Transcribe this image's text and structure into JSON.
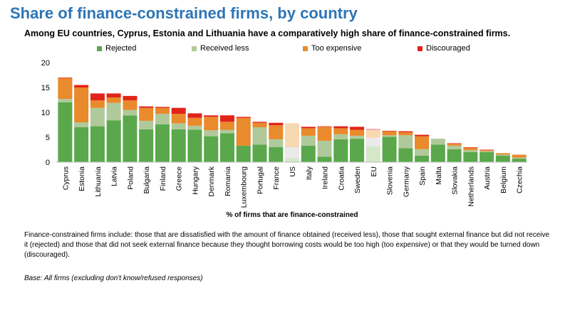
{
  "header": {
    "title": "Share of finance-constrained firms, by country",
    "subtitle": "Among EU countries, Cyprus, Estonia and Lithuania have a comparatively high share of finance-constrained firms."
  },
  "chart_data": {
    "type": "bar",
    "stacked": true,
    "categories": [
      "Cyprus",
      "Estonia",
      "Lithuania",
      "Latvia",
      "Poland",
      "Bulgaria",
      "Finland",
      "Greece",
      "Hungary",
      "Denmark",
      "Romania",
      "Luxembourg",
      "Portugal",
      "France",
      "US",
      "Italy",
      "Ireland",
      "Croatia",
      "Sweden",
      "EU",
      "Slovenia",
      "Germany",
      "Spain",
      "Malta",
      "Slovakia",
      "Netherlands",
      "Austria",
      "Belgium",
      "Czechia"
    ],
    "highlight_categories": [
      "US",
      "EU"
    ],
    "series": [
      {
        "name": "Rejected",
        "color": "#5aa84b",
        "highlight_color": "#d4e8c9",
        "values": [
          12.0,
          7.0,
          7.2,
          8.4,
          9.4,
          6.6,
          7.6,
          6.6,
          6.5,
          5.2,
          5.8,
          3.3,
          3.5,
          3.0,
          0.8,
          3.3,
          1.1,
          4.6,
          4.7,
          3.2,
          5.1,
          2.8,
          1.3,
          3.5,
          2.6,
          2.0,
          2.0,
          1.3,
          0.7
        ]
      },
      {
        "name": "Received less",
        "color": "#b0c99a",
        "highlight_color": "#eaeaea",
        "values": [
          0.7,
          1.0,
          3.7,
          3.5,
          1.1,
          1.7,
          2.1,
          1.2,
          0.8,
          1.2,
          0.7,
          0.0,
          3.5,
          1.6,
          2.2,
          2.0,
          3.2,
          1.0,
          0.6,
          1.7,
          0.3,
          2.6,
          1.3,
          1.2,
          0.7,
          0.4,
          0.2,
          0.2,
          0.2
        ]
      },
      {
        "name": "Too expensive",
        "color": "#e98a2c",
        "highlight_color": "#f8d8b0",
        "values": [
          4.2,
          7.0,
          1.5,
          1.1,
          1.9,
          2.6,
          1.2,
          1.9,
          1.6,
          2.7,
          1.6,
          5.6,
          0.9,
          2.8,
          4.8,
          1.5,
          2.8,
          1.2,
          1.2,
          1.5,
          0.8,
          0.6,
          2.6,
          0.0,
          0.4,
          0.5,
          0.2,
          0.3,
          0.6
        ]
      },
      {
        "name": "Discouraged",
        "color": "#e2231a",
        "highlight_color": "#f4b1ac",
        "values": [
          0.1,
          0.5,
          1.4,
          0.8,
          0.9,
          0.3,
          0.2,
          1.2,
          0.9,
          0.3,
          1.3,
          0.2,
          0.2,
          0.5,
          0.0,
          0.3,
          0.1,
          0.4,
          0.6,
          0.3,
          0.1,
          0.2,
          0.3,
          0.0,
          0.1,
          0.1,
          0.1,
          0.0,
          0.0
        ]
      }
    ],
    "ylim": [
      0,
      20
    ],
    "yticks": [
      0,
      5,
      10,
      15,
      20
    ],
    "xlabel": "% of firms that are finance-constrained",
    "ylabel": "",
    "grid": false,
    "legend_position": "top"
  },
  "footnote": {
    "description": "Finance-constrained firms include: those that are dissatisfied with the amount of finance obtained (received less), those that sought external finance but did not receive it (rejected) and those that did not seek external finance because they thought borrowing costs would be too high (too expensive) or that they would be turned down (discouraged).",
    "base": "Base: All firms (excluding don't know/refused responses)"
  }
}
